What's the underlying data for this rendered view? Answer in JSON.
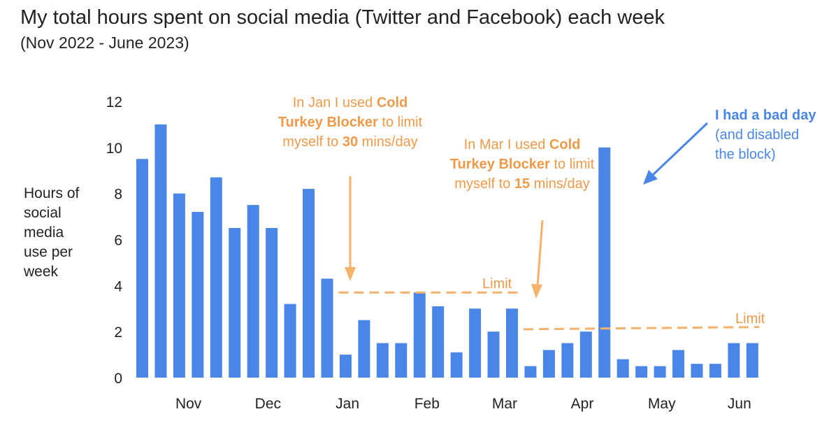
{
  "title": "My total hours spent on social media (Twitter and Facebook) each week",
  "subtitle": "(Nov 2022 - June 2023)",
  "colors": {
    "bar": "#4a86e8",
    "limit": "#f6b26b",
    "annotation_orange": "#ef9a4a",
    "annotation_blue": "#4a86e8"
  },
  "annotations": {
    "jan": {
      "pre": "In Jan I used ",
      "bold1": "Cold Turkey Blocker",
      "mid": " to limit myself to ",
      "bold2": "30",
      "post": " mins/day"
    },
    "mar": {
      "pre": "In Mar I used ",
      "bold1": "Cold Turkey Blocker",
      "mid": " to limit myself to ",
      "bold2": "15",
      "post": " mins/day"
    },
    "bad_day": {
      "bold": "I had a bad day",
      "rest": "(and disabled the block)"
    }
  },
  "chart_data": {
    "type": "bar",
    "title": "My total hours spent on social media (Twitter and Facebook) each week",
    "subtitle": "(Nov 2022 - June 2023)",
    "xlabel": "",
    "ylabel_lines": [
      "Hours of",
      "social",
      "media",
      "use per",
      "week"
    ],
    "ylim": [
      0,
      12
    ],
    "yticks": [
      0,
      2,
      4,
      6,
      8,
      10,
      12
    ],
    "grid": false,
    "month_labels": [
      {
        "label": "Nov",
        "bar_index": 2.5
      },
      {
        "label": "Dec",
        "bar_index": 6.8
      },
      {
        "label": "Jan",
        "bar_index": 11.1
      },
      {
        "label": "Feb",
        "bar_index": 15.4
      },
      {
        "label": "Mar",
        "bar_index": 19.6
      },
      {
        "label": "Apr",
        "bar_index": 23.8
      },
      {
        "label": "May",
        "bar_index": 28.1
      },
      {
        "label": "Jun",
        "bar_index": 32.3
      }
    ],
    "values": [
      9.5,
      11.0,
      8.0,
      7.2,
      8.7,
      6.5,
      7.5,
      6.5,
      3.2,
      8.2,
      4.3,
      1.0,
      2.5,
      1.5,
      1.5,
      3.7,
      3.1,
      1.1,
      3.0,
      2.0,
      3.0,
      0.5,
      1.2,
      1.5,
      2.0,
      10.0,
      0.8,
      0.5,
      0.5,
      1.2,
      0.6,
      0.6,
      1.5,
      1.5
    ],
    "limits": [
      {
        "label": "Limit",
        "from_bar": 11,
        "to_bar": 20,
        "value_start": 3.7,
        "value_end": 3.7
      },
      {
        "label": "Limit",
        "from_bar": 21,
        "to_bar": 33,
        "value_start": 2.1,
        "value_end": 2.2
      }
    ]
  }
}
